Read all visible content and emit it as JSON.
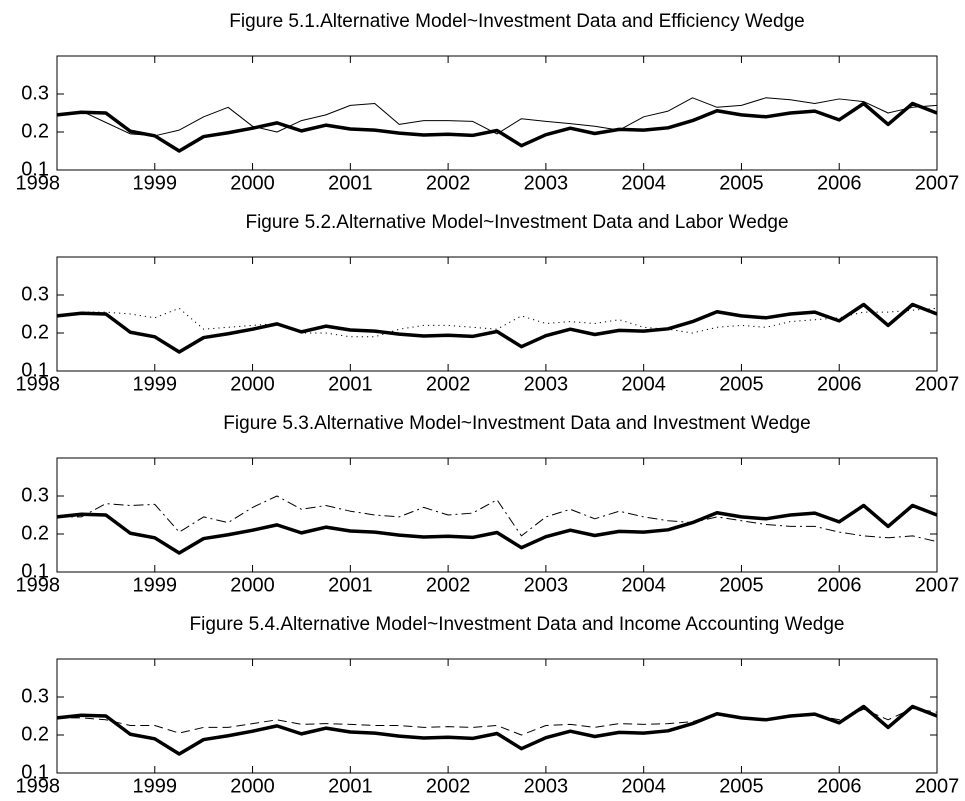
{
  "chart_data": [
    {
      "type": "line",
      "title": "Figure 5.1.Alternative Model~Investment Data and Efficiency Wedge",
      "x": [
        1998,
        1998.25,
        1998.5,
        1998.75,
        1999,
        1999.25,
        1999.5,
        1999.75,
        2000,
        2000.25,
        2000.5,
        2000.75,
        2001,
        2001.25,
        2001.5,
        2001.75,
        2002,
        2002.25,
        2002.5,
        2002.75,
        2003,
        2003.25,
        2003.5,
        2003.75,
        2004,
        2004.25,
        2004.5,
        2004.75,
        2005,
        2005.25,
        2005.5,
        2005.75,
        2006,
        2006.25,
        2006.5,
        2006.75,
        2007
      ],
      "xlim": [
        1998,
        2007
      ],
      "xticks": [
        1998,
        1999,
        2000,
        2001,
        2002,
        2003,
        2004,
        2005,
        2006,
        2007
      ],
      "ylim": [
        0.1,
        0.4
      ],
      "yticks": [
        0.1,
        0.2,
        0.3
      ],
      "series": [
        {
          "color": "#000000",
          "linewidth": 3.5,
          "dash": "solid",
          "values": [
            0.245,
            0.252,
            0.25,
            0.202,
            0.19,
            0.15,
            0.188,
            0.198,
            0.21,
            0.224,
            0.203,
            0.218,
            0.208,
            0.205,
            0.197,
            0.192,
            0.194,
            0.191,
            0.204,
            0.164,
            0.193,
            0.21,
            0.196,
            0.207,
            0.205,
            0.211,
            0.23,
            0.256,
            0.245,
            0.24,
            0.25,
            0.255,
            0.232,
            0.275,
            0.22,
            0.275,
            0.25
          ]
        },
        {
          "color": "#000000",
          "linewidth": 1,
          "dash": "solid",
          "values": [
            0.245,
            0.255,
            0.225,
            0.195,
            0.19,
            0.205,
            0.24,
            0.265,
            0.215,
            0.2,
            0.23,
            0.245,
            0.27,
            0.275,
            0.22,
            0.23,
            0.23,
            0.228,
            0.195,
            0.235,
            0.228,
            0.222,
            0.215,
            0.205,
            0.24,
            0.255,
            0.29,
            0.265,
            0.27,
            0.29,
            0.285,
            0.275,
            0.287,
            0.28,
            0.25,
            0.265,
            0.27
          ]
        }
      ]
    },
    {
      "type": "line",
      "title": "Figure 5.2.Alternative Model~Investment Data and Labor Wedge",
      "x": [
        1998,
        1998.25,
        1998.5,
        1998.75,
        1999,
        1999.25,
        1999.5,
        1999.75,
        2000,
        2000.25,
        2000.5,
        2000.75,
        2001,
        2001.25,
        2001.5,
        2001.75,
        2002,
        2002.25,
        2002.5,
        2002.75,
        2003,
        2003.25,
        2003.5,
        2003.75,
        2004,
        2004.25,
        2004.5,
        2004.75,
        2005,
        2005.25,
        2005.5,
        2005.75,
        2006,
        2006.25,
        2006.5,
        2006.75,
        2007
      ],
      "xlim": [
        1998,
        2007
      ],
      "xticks": [
        1998,
        1999,
        2000,
        2001,
        2002,
        2003,
        2004,
        2005,
        2006,
        2007
      ],
      "ylim": [
        0.1,
        0.4
      ],
      "yticks": [
        0.1,
        0.2,
        0.3
      ],
      "series": [
        {
          "color": "#000000",
          "linewidth": 3.5,
          "dash": "solid",
          "values": [
            0.245,
            0.252,
            0.25,
            0.202,
            0.19,
            0.15,
            0.188,
            0.198,
            0.21,
            0.224,
            0.203,
            0.218,
            0.208,
            0.205,
            0.197,
            0.192,
            0.194,
            0.191,
            0.204,
            0.164,
            0.193,
            0.21,
            0.196,
            0.207,
            0.205,
            0.211,
            0.23,
            0.256,
            0.245,
            0.24,
            0.25,
            0.255,
            0.232,
            0.275,
            0.22,
            0.275,
            0.25
          ]
        },
        {
          "color": "#000000",
          "linewidth": 1,
          "dash": "dotted",
          "values": [
            0.245,
            0.255,
            0.255,
            0.25,
            0.24,
            0.265,
            0.21,
            0.215,
            0.22,
            0.225,
            0.2,
            0.2,
            0.19,
            0.19,
            0.21,
            0.22,
            0.22,
            0.215,
            0.21,
            0.245,
            0.225,
            0.23,
            0.225,
            0.235,
            0.215,
            0.21,
            0.2,
            0.215,
            0.22,
            0.215,
            0.23,
            0.235,
            0.24,
            0.255,
            0.255,
            0.26,
            0.265
          ]
        }
      ]
    },
    {
      "type": "line",
      "title": "Figure 5.3.Alternative Model~Investment Data and Investment Wedge",
      "x": [
        1998,
        1998.25,
        1998.5,
        1998.75,
        1999,
        1999.25,
        1999.5,
        1999.75,
        2000,
        2000.25,
        2000.5,
        2000.75,
        2001,
        2001.25,
        2001.5,
        2001.75,
        2002,
        2002.25,
        2002.5,
        2002.75,
        2003,
        2003.25,
        2003.5,
        2003.75,
        2004,
        2004.25,
        2004.5,
        2004.75,
        2005,
        2005.25,
        2005.5,
        2005.75,
        2006,
        2006.25,
        2006.5,
        2006.75,
        2007
      ],
      "xlim": [
        1998,
        2007
      ],
      "xticks": [
        1998,
        1999,
        2000,
        2001,
        2002,
        2003,
        2004,
        2005,
        2006,
        2007
      ],
      "ylim": [
        0.1,
        0.4
      ],
      "yticks": [
        0.1,
        0.2,
        0.3
      ],
      "series": [
        {
          "color": "#000000",
          "linewidth": 3.5,
          "dash": "solid",
          "values": [
            0.245,
            0.252,
            0.25,
            0.202,
            0.19,
            0.15,
            0.188,
            0.198,
            0.21,
            0.224,
            0.203,
            0.218,
            0.208,
            0.205,
            0.197,
            0.192,
            0.194,
            0.191,
            0.204,
            0.164,
            0.193,
            0.21,
            0.196,
            0.207,
            0.205,
            0.211,
            0.23,
            0.256,
            0.245,
            0.24,
            0.25,
            0.255,
            0.232,
            0.275,
            0.22,
            0.275,
            0.25
          ]
        },
        {
          "color": "#000000",
          "linewidth": 1,
          "dash": "dash-dot",
          "values": [
            0.245,
            0.245,
            0.28,
            0.275,
            0.278,
            0.205,
            0.245,
            0.23,
            0.27,
            0.3,
            0.265,
            0.275,
            0.26,
            0.25,
            0.245,
            0.27,
            0.25,
            0.255,
            0.29,
            0.195,
            0.245,
            0.265,
            0.24,
            0.26,
            0.245,
            0.235,
            0.23,
            0.245,
            0.235,
            0.225,
            0.22,
            0.22,
            0.205,
            0.195,
            0.19,
            0.195,
            0.18
          ]
        }
      ]
    },
    {
      "type": "line",
      "title": "Figure 5.4.Alternative Model~Investment Data and Income Accounting Wedge",
      "x": [
        1998,
        1998.25,
        1998.5,
        1998.75,
        1999,
        1999.25,
        1999.5,
        1999.75,
        2000,
        2000.25,
        2000.5,
        2000.75,
        2001,
        2001.25,
        2001.5,
        2001.75,
        2002,
        2002.25,
        2002.5,
        2002.75,
        2003,
        2003.25,
        2003.5,
        2003.75,
        2004,
        2004.25,
        2004.5,
        2004.75,
        2005,
        2005.25,
        2005.5,
        2005.75,
        2006,
        2006.25,
        2006.5,
        2006.75,
        2007
      ],
      "xlim": [
        1998,
        2007
      ],
      "xticks": [
        1998,
        1999,
        2000,
        2001,
        2002,
        2003,
        2004,
        2005,
        2006,
        2007
      ],
      "ylim": [
        0.1,
        0.4
      ],
      "yticks": [
        0.1,
        0.2,
        0.3
      ],
      "series": [
        {
          "color": "#000000",
          "linewidth": 3.5,
          "dash": "solid",
          "values": [
            0.245,
            0.252,
            0.25,
            0.202,
            0.19,
            0.15,
            0.188,
            0.198,
            0.21,
            0.224,
            0.203,
            0.218,
            0.208,
            0.205,
            0.197,
            0.192,
            0.194,
            0.191,
            0.204,
            0.164,
            0.193,
            0.21,
            0.196,
            0.207,
            0.205,
            0.211,
            0.23,
            0.256,
            0.245,
            0.24,
            0.25,
            0.255,
            0.232,
            0.275,
            0.22,
            0.275,
            0.25
          ]
        },
        {
          "color": "#000000",
          "linewidth": 1,
          "dash": "dashed",
          "values": [
            0.245,
            0.245,
            0.24,
            0.225,
            0.225,
            0.205,
            0.22,
            0.22,
            0.23,
            0.24,
            0.228,
            0.23,
            0.228,
            0.225,
            0.225,
            0.22,
            0.222,
            0.22,
            0.225,
            0.2,
            0.225,
            0.228,
            0.22,
            0.23,
            0.228,
            0.23,
            0.235,
            0.255,
            0.245,
            0.24,
            0.248,
            0.252,
            0.24,
            0.268,
            0.24,
            0.27,
            0.26
          ]
        }
      ]
    }
  ]
}
